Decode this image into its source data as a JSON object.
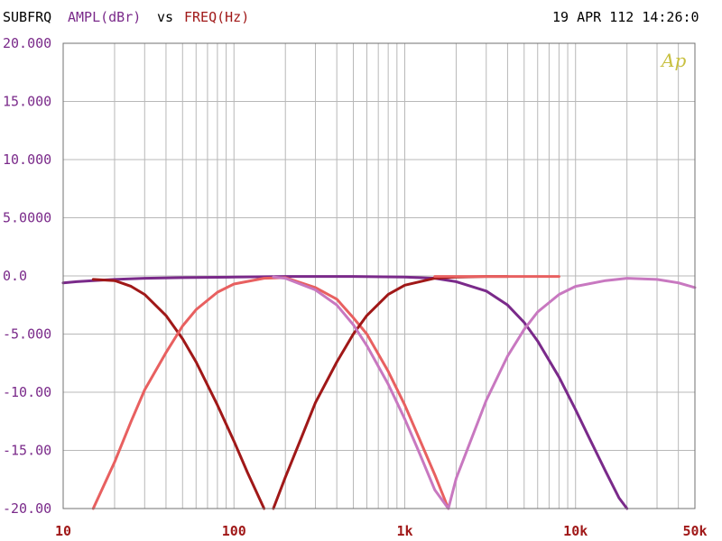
{
  "header": {
    "prefix": "SUBFRQ",
    "yquantity": "AMPL(dBr)",
    "vs": "vs",
    "xquantity": "FREQ(Hz)",
    "datetime": "19 APR 112 14:26:0"
  },
  "logo": "Ap",
  "colors": {
    "background": "#ffffff",
    "grid": "#b8b8b8",
    "frame": "#707070",
    "ylabels": "#7a2a8a",
    "xlabels": "#a01818",
    "header_text": "#000000",
    "logo": "#c8c040"
  },
  "chart_data": {
    "type": "line",
    "xscale": "log",
    "xlim": [
      10,
      50000
    ],
    "ylim": [
      -20,
      20
    ],
    "grid": true,
    "xticks": [
      10,
      100,
      1000,
      10000,
      50000
    ],
    "xtick_labels": [
      "10",
      "100",
      "1k",
      "10k",
      "50k"
    ],
    "yticks": [
      20,
      15,
      10,
      5,
      0,
      -5,
      -10,
      -15,
      -20
    ],
    "ytick_labels": [
      "20.000",
      "15.000",
      "10.000",
      "5.0000",
      "0.0",
      "-5.000",
      "-10.00",
      "-15.00",
      "-20.00"
    ],
    "series": [
      {
        "color": "#7a2a8a",
        "x": [
          10,
          12,
          15,
          20,
          30,
          50,
          100,
          200,
          500,
          1000,
          1500,
          2000,
          3000,
          4000,
          5000,
          6000,
          8000,
          10000,
          12000,
          15000,
          18000,
          20000
        ],
        "y": [
          -0.6,
          -0.5,
          -0.4,
          -0.3,
          -0.2,
          -0.15,
          -0.1,
          -0.05,
          -0.05,
          -0.1,
          -0.2,
          -0.5,
          -1.3,
          -2.5,
          -4.0,
          -5.6,
          -8.7,
          -11.5,
          -13.9,
          -16.8,
          -19.1,
          -20
        ]
      },
      {
        "color": "#a01818",
        "x": [
          15,
          20,
          25,
          30,
          40,
          50,
          60,
          80,
          100,
          120,
          150
        ],
        "y": [
          -0.3,
          -0.4,
          -0.9,
          -1.6,
          -3.4,
          -5.4,
          -7.4,
          -11.1,
          -14.2,
          -16.9,
          -20
        ]
      },
      {
        "color": "#e86060",
        "x": [
          15,
          20,
          25,
          30,
          40,
          50,
          60,
          80,
          100,
          150,
          200,
          300,
          400,
          500,
          600,
          800,
          1000,
          1200,
          1500,
          1800
        ],
        "y": [
          -20,
          -16.0,
          -12.5,
          -9.8,
          -6.6,
          -4.3,
          -2.9,
          -1.4,
          -0.7,
          -0.2,
          -0.15,
          -1.0,
          -2.0,
          -3.6,
          -5.0,
          -8.2,
          -11.1,
          -13.8,
          -17.1,
          -20
        ]
      },
      {
        "color": "#a01818",
        "x": [
          170,
          200,
          250,
          300,
          400,
          500,
          600,
          800,
          1000,
          1500,
          2000,
          3000,
          4000
        ],
        "y": [
          -20,
          -17.3,
          -13.8,
          -10.9,
          -7.4,
          -5.0,
          -3.4,
          -1.6,
          -0.8,
          -0.2,
          -0.1,
          -0.05,
          -0.05
        ]
      },
      {
        "color": "#e86060",
        "x": [
          1500,
          2000,
          3000,
          5000,
          8000
        ],
        "y": [
          -0.05,
          -0.05,
          -0.05,
          -0.05,
          -0.05
        ]
      },
      {
        "color": "#c878c0",
        "x": [
          170,
          200,
          300,
          400,
          500,
          600,
          800,
          1000,
          1200,
          1500,
          1800,
          2000,
          3000,
          4000,
          5000,
          6000,
          8000,
          10000,
          15000,
          20000,
          30000,
          40000,
          50000
        ],
        "y": [
          -0.1,
          -0.2,
          -1.2,
          -2.5,
          -4.2,
          -6.0,
          -9.3,
          -12.3,
          -15.0,
          -18.4,
          -20,
          -17.4,
          -10.7,
          -6.9,
          -4.6,
          -3.1,
          -1.6,
          -0.9,
          -0.4,
          -0.2,
          -0.3,
          -0.6,
          -1.0
        ]
      }
    ]
  }
}
